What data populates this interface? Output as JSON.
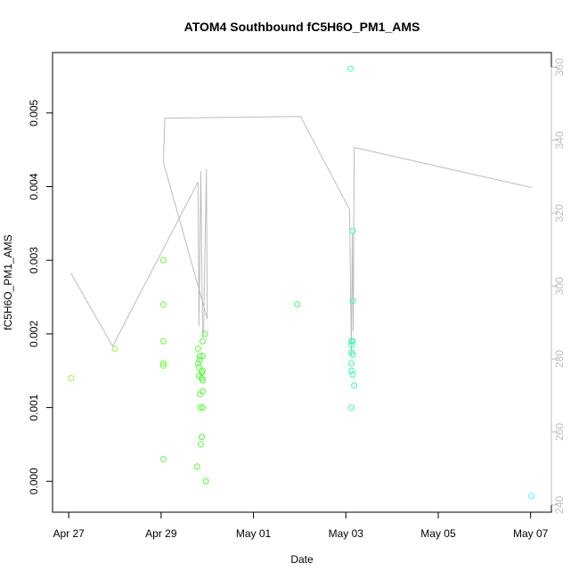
{
  "chart_data": {
    "type": "scatter",
    "title": "ATOM4 Southbound fC5H6O_PM1_AMS",
    "xlabel": "Date",
    "ylabel": "fC5H6O_PM1_AMS",
    "x_ticks": [
      "Apr 27",
      "Apr 29",
      "May 01",
      "May 03",
      "May 05",
      "May 07"
    ],
    "x_tick_days": [
      0,
      2,
      4,
      6,
      8,
      10
    ],
    "xlim_days": [
      -0.35,
      10.45
    ],
    "y_left": {
      "ticks": [
        "0.000",
        "0.001",
        "0.002",
        "0.003",
        "0.004",
        "0.005"
      ],
      "tick_values": [
        0,
        0.001,
        0.002,
        0.003,
        0.004,
        0.005
      ],
      "ylim": [
        -0.00042,
        0.00582
      ]
    },
    "y_right": {
      "ticks": [
        "240",
        "260",
        "280",
        "300",
        "320",
        "340",
        "360"
      ],
      "tick_values": [
        240,
        260,
        280,
        300,
        320,
        340,
        360
      ],
      "ylim": [
        238,
        364
      ],
      "color": "#bdbdbd"
    },
    "series": [
      {
        "marker": "circle",
        "points": [
          {
            "x": 0.05,
            "y": 0.0014,
            "color": "#9aff3c"
          },
          {
            "x": 1.0,
            "y": 0.0018,
            "color": "#8dff3a"
          },
          {
            "x": 2.05,
            "y": 0.003,
            "color": "#66ff33"
          },
          {
            "x": 2.05,
            "y": 0.0024,
            "color": "#66ff33"
          },
          {
            "x": 2.05,
            "y": 0.0019,
            "color": "#66ff33"
          },
          {
            "x": 2.05,
            "y": 0.0016,
            "color": "#66ff33"
          },
          {
            "x": 2.05,
            "y": 0.00157,
            "color": "#66ff33"
          },
          {
            "x": 2.05,
            "y": 0.0003,
            "color": "#66ff33"
          },
          {
            "x": 2.78,
            "y": 0.0002,
            "color": "#52ff33"
          },
          {
            "x": 2.8,
            "y": 0.0018,
            "color": "#52ff33"
          },
          {
            "x": 2.8,
            "y": 0.0016,
            "color": "#52ff33"
          },
          {
            "x": 2.82,
            "y": 0.00155,
            "color": "#52ff33"
          },
          {
            "x": 2.82,
            "y": 0.00143,
            "color": "#52ff33"
          },
          {
            "x": 2.84,
            "y": 0.0017,
            "color": "#50ff33"
          },
          {
            "x": 2.84,
            "y": 0.00165,
            "color": "#50ff33"
          },
          {
            "x": 2.84,
            "y": 0.00118,
            "color": "#50ff33"
          },
          {
            "x": 2.85,
            "y": 0.001,
            "color": "#50ff33"
          },
          {
            "x": 2.86,
            "y": 0.0005,
            "color": "#50ff33"
          },
          {
            "x": 2.88,
            "y": 0.0006,
            "color": "#4fff33"
          },
          {
            "x": 2.88,
            "y": 0.00148,
            "color": "#4fff33"
          },
          {
            "x": 2.88,
            "y": 0.0014,
            "color": "#4fff33"
          },
          {
            "x": 2.9,
            "y": 0.0019,
            "color": "#4eff33"
          },
          {
            "x": 2.9,
            "y": 0.0017,
            "color": "#4eff33"
          },
          {
            "x": 2.9,
            "y": 0.0015,
            "color": "#4eff33"
          },
          {
            "x": 2.9,
            "y": 0.00137,
            "color": "#4eff33"
          },
          {
            "x": 2.9,
            "y": 0.00122,
            "color": "#4eff33"
          },
          {
            "x": 2.9,
            "y": 0.001,
            "color": "#4eff33"
          },
          {
            "x": 2.95,
            "y": 0.002,
            "color": "#4dff33"
          },
          {
            "x": 2.97,
            "y": 0.0,
            "color": "#4dff33"
          },
          {
            "x": 4.95,
            "y": 0.0024,
            "color": "#3cff60"
          },
          {
            "x": 6.1,
            "y": 0.0056,
            "color": "#33ffaa"
          },
          {
            "x": 6.12,
            "y": 0.0019,
            "color": "#33ffaa"
          },
          {
            "x": 6.12,
            "y": 0.00185,
            "color": "#33ffaa"
          },
          {
            "x": 6.12,
            "y": 0.00175,
            "color": "#33ffaa"
          },
          {
            "x": 6.12,
            "y": 0.0016,
            "color": "#33ffaa"
          },
          {
            "x": 6.12,
            "y": 0.0015,
            "color": "#33ffaa"
          },
          {
            "x": 6.12,
            "y": 0.001,
            "color": "#33ffaa"
          },
          {
            "x": 6.15,
            "y": 0.0034,
            "color": "#33ffb0"
          },
          {
            "x": 6.15,
            "y": 0.00245,
            "color": "#33ffb0"
          },
          {
            "x": 6.15,
            "y": 0.0019,
            "color": "#33ffb0"
          },
          {
            "x": 6.15,
            "y": 0.00172,
            "color": "#33ffb0"
          },
          {
            "x": 6.15,
            "y": 0.00145,
            "color": "#33ffb0"
          },
          {
            "x": 6.18,
            "y": 0.0013,
            "color": "#33ffb5"
          },
          {
            "x": 10.02,
            "y": -0.0002,
            "color": "#33ffff"
          }
        ]
      },
      {
        "type": "line",
        "axis": "right",
        "color": "#bdbdbd",
        "points": [
          {
            "x": 0.05,
            "y": 303.5
          },
          {
            "x": 0.95,
            "y": 283.5
          },
          {
            "x": 2.8,
            "y": 328.5
          },
          {
            "x": 2.82,
            "y": 289.0
          },
          {
            "x": 2.86,
            "y": 331.5
          },
          {
            "x": 2.9,
            "y": 286.0
          },
          {
            "x": 2.92,
            "y": 288.0
          },
          {
            "x": 2.98,
            "y": 332.0
          },
          {
            "x": 3.0,
            "y": 291.0
          },
          {
            "x": 2.05,
            "y": 334.0
          },
          {
            "x": 2.08,
            "y": 346.0
          },
          {
            "x": 5.02,
            "y": 346.5
          },
          {
            "x": 6.08,
            "y": 321.0
          },
          {
            "x": 6.12,
            "y": 281.0
          },
          {
            "x": 6.14,
            "y": 314.5
          },
          {
            "x": 6.16,
            "y": 287.5
          },
          {
            "x": 6.18,
            "y": 338.0
          },
          {
            "x": 10.02,
            "y": 327.0
          }
        ]
      }
    ]
  }
}
